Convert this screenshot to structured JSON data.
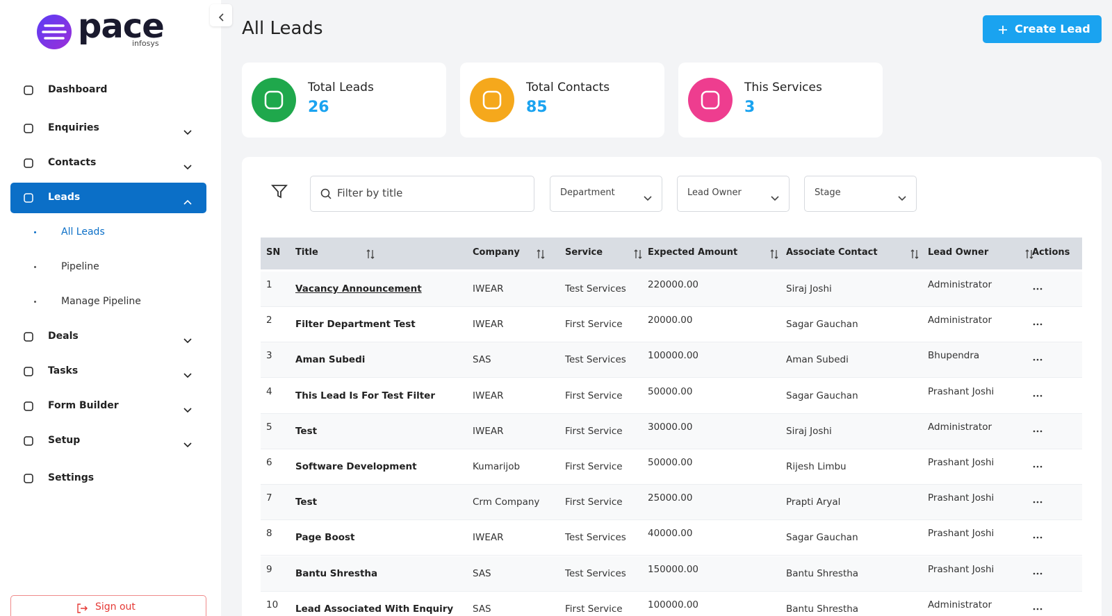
{
  "logo": {
    "name": "pace",
    "sub": "infosys"
  },
  "sidebar": {
    "items": [
      {
        "label": "Dashboard"
      },
      {
        "label": "Enquiries",
        "expandable": true
      },
      {
        "label": "Contacts",
        "expandable": true
      },
      {
        "label": "Leads",
        "expandable": true,
        "active": true,
        "children": [
          "All Leads",
          "Pipeline",
          "Manage Pipeline"
        ]
      },
      {
        "label": "Deals",
        "expandable": true
      },
      {
        "label": "Tasks",
        "expandable": true
      },
      {
        "label": "Form Builder",
        "expandable": true
      },
      {
        "label": "Setup",
        "expandable": true
      },
      {
        "label": "Settings"
      }
    ],
    "sign_out": "Sign out"
  },
  "header": {
    "title": "All Leads",
    "create_button": "Create Lead"
  },
  "stats": [
    {
      "label": "Total Leads",
      "value": 26,
      "color": "#1fa84c"
    },
    {
      "label": "Total Contacts",
      "value": 85,
      "color": "#f5a81c"
    },
    {
      "label": "This Services",
      "value": 3,
      "color": "#ee3d8f"
    }
  ],
  "filters": {
    "search_placeholder": "Filter by title",
    "dropdowns": [
      "Department",
      "Lead Owner",
      "Stage"
    ]
  },
  "table": {
    "columns": [
      "SN",
      "Title",
      "Company",
      "Service",
      "Expected Amount",
      "Associate Contact",
      "Lead Owner",
      "Actions"
    ],
    "rows": [
      [
        1,
        "Vacancy Announcement",
        "IWEAR",
        "Test Services",
        "220000.00",
        "Siraj Joshi",
        "Administrator"
      ],
      [
        2,
        "Filter Department Test",
        "IWEAR",
        "First Service",
        "20000.00",
        "Sagar Gauchan",
        "Administrator"
      ],
      [
        3,
        "Aman Subedi",
        "SAS",
        "Test Services",
        "100000.00",
        "Aman Subedi",
        "Bhupendra"
      ],
      [
        4,
        "This Lead Is For Test Filter",
        "IWEAR",
        "First Service",
        "50000.00",
        "Sagar Gauchan",
        "Prashant Joshi"
      ],
      [
        5,
        "Test",
        "IWEAR",
        "First Service",
        "30000.00",
        "Siraj Joshi",
        "Administrator"
      ],
      [
        6,
        "Software Development",
        "Kumarijob",
        "First Service",
        "50000.00",
        "Rijesh Limbu",
        "Prashant Joshi"
      ],
      [
        7,
        "Test",
        "Crm Company",
        "First Service",
        "25000.00",
        "Prapti Aryal",
        "Prashant Joshi"
      ],
      [
        8,
        "Page Boost",
        "IWEAR",
        "Test Services",
        "40000.00",
        "Sagar Gauchan",
        "Prashant Joshi"
      ],
      [
        9,
        "Bantu Shrestha",
        "SAS",
        "Test Services",
        "150000.00",
        "Bantu Shrestha",
        "Prashant Joshi"
      ],
      [
        10,
        "Lead Associated With Enquiry",
        "SAS",
        "First Service",
        "100000.00",
        "Bantu Shrestha",
        "Administrator"
      ]
    ]
  }
}
